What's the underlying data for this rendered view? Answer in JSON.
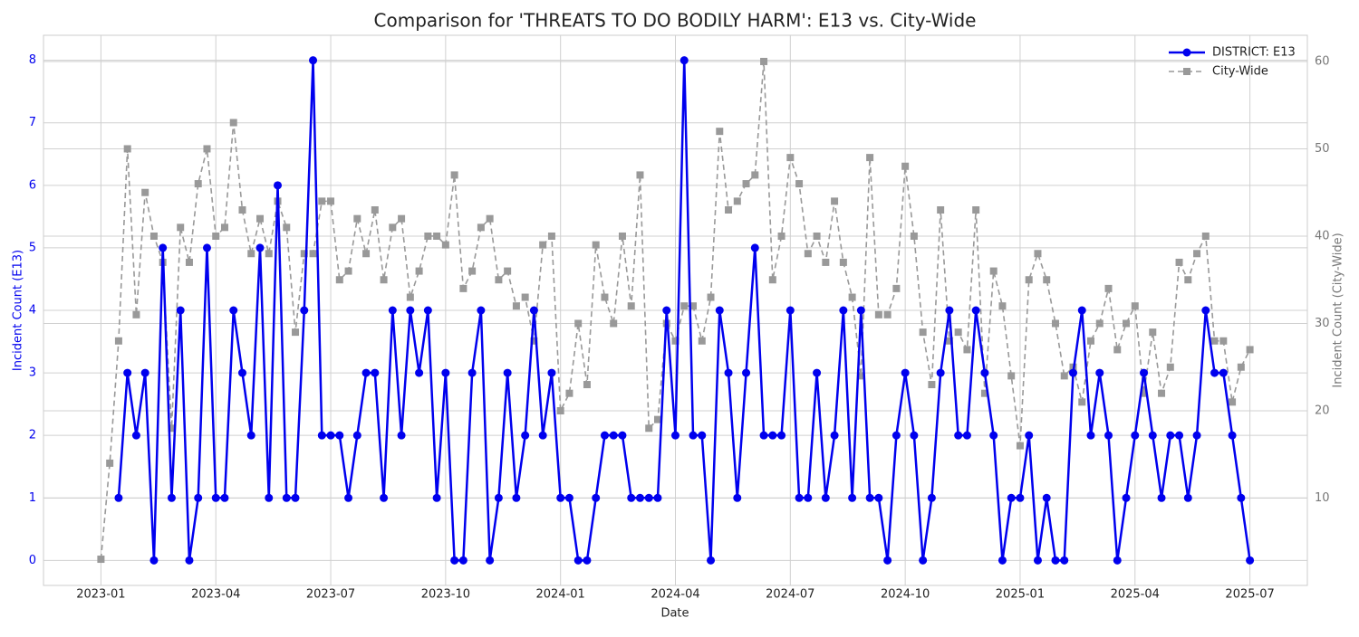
{
  "chart_data": {
    "type": "line",
    "title": "Comparison for 'THREATS TO DO BODILY HARM': E13 vs. City-Wide",
    "x_label": "Date",
    "y_label": "Incident Count (E13)",
    "y2_label": "Incident Count (City-Wide)",
    "categories": [
      "2023-01",
      null,
      null,
      null,
      null,
      null,
      null,
      null,
      null,
      null,
      null,
      null,
      null,
      "2023-04",
      null,
      null,
      null,
      null,
      null,
      null,
      null,
      null,
      null,
      null,
      null,
      null,
      "2023-07",
      null,
      null,
      null,
      null,
      null,
      null,
      null,
      null,
      null,
      null,
      null,
      null,
      "2023-10",
      null,
      null,
      null,
      null,
      null,
      null,
      null,
      null,
      null,
      null,
      null,
      null,
      "2024-01",
      null,
      null,
      null,
      null,
      null,
      null,
      null,
      null,
      null,
      null,
      null,
      null,
      "2024-04",
      null,
      null,
      null,
      null,
      null,
      null,
      null,
      null,
      null,
      null,
      null,
      null,
      "2024-07",
      null,
      null,
      null,
      null,
      null,
      null,
      null,
      null,
      null,
      null,
      null,
      null,
      "2024-10",
      null,
      null,
      null,
      null,
      null,
      null,
      null,
      null,
      null,
      null,
      null,
      null,
      "2025-01",
      null,
      null,
      null,
      null,
      null,
      null,
      null,
      null,
      null,
      null,
      null,
      null,
      "2025-04",
      null,
      null,
      null,
      null,
      null,
      null,
      null,
      null,
      null,
      null,
      null,
      null,
      "2025-07"
    ],
    "series": [
      {
        "name": "DISTRICT: E13",
        "color": "#0000ee",
        "axis": "y",
        "values": [
          null,
          null,
          1,
          3,
          2,
          3,
          0,
          5,
          1,
          4,
          0,
          1,
          5,
          1,
          1,
          4,
          3,
          2,
          5,
          1,
          6,
          1,
          1,
          4,
          8,
          2,
          2,
          2,
          1,
          2,
          3,
          3,
          1,
          4,
          2,
          4,
          3,
          4,
          1,
          3,
          0,
          0,
          3,
          4,
          0,
          1,
          3,
          1,
          2,
          4,
          2,
          3,
          1,
          1,
          0,
          0,
          1,
          2,
          2,
          2,
          1,
          1,
          1,
          1,
          4,
          2,
          8,
          2,
          2,
          0,
          4,
          3,
          1,
          3,
          5,
          2,
          2,
          2,
          4,
          1,
          1,
          3,
          1,
          2,
          4,
          1,
          4,
          1,
          1,
          0,
          2,
          3,
          2,
          0,
          1,
          3,
          4,
          2,
          2,
          4,
          3,
          2,
          0,
          1,
          1,
          2,
          0,
          1,
          0,
          0,
          3,
          4,
          2,
          3,
          2,
          0,
          1,
          2,
          3,
          2,
          1,
          2,
          2,
          1,
          2,
          4,
          3,
          3,
          2,
          1,
          0
        ]
      },
      {
        "name": "City-Wide",
        "color": "#999999",
        "axis": "y2",
        "values": [
          3,
          14,
          28,
          50,
          31,
          45,
          40,
          37,
          18,
          41,
          37,
          46,
          50,
          40,
          41,
          53,
          43,
          38,
          42,
          38,
          44,
          41,
          29,
          38,
          38,
          44,
          44,
          35,
          36,
          42,
          38,
          43,
          35,
          41,
          42,
          33,
          36,
          40,
          40,
          39,
          47,
          34,
          36,
          41,
          42,
          35,
          36,
          32,
          33,
          28,
          39,
          40,
          20,
          22,
          30,
          23,
          39,
          33,
          30,
          40,
          32,
          47,
          18,
          19,
          30,
          28,
          32,
          32,
          28,
          33,
          52,
          43,
          44,
          46,
          47,
          60,
          35,
          40,
          49,
          46,
          38,
          40,
          37,
          44,
          37,
          33,
          24,
          49,
          31,
          31,
          34,
          48,
          40,
          29,
          23,
          43,
          28,
          29,
          27,
          43,
          22,
          36,
          32,
          24,
          16,
          35,
          38,
          35,
          30,
          24,
          25,
          21,
          28,
          30,
          34,
          27,
          30,
          32,
          22,
          29,
          22,
          25,
          37,
          35,
          38,
          40,
          28,
          28,
          21,
          25,
          27
        ]
      }
    ],
    "ylim": [
      -0.4,
      8.4
    ],
    "yticks": [
      0,
      1,
      2,
      3,
      4,
      5,
      6,
      7,
      8
    ],
    "y2lim": [
      0,
      63
    ],
    "y2ticks": [
      10,
      20,
      30,
      40,
      50,
      60
    ],
    "grid": true,
    "legend": "upper right"
  }
}
